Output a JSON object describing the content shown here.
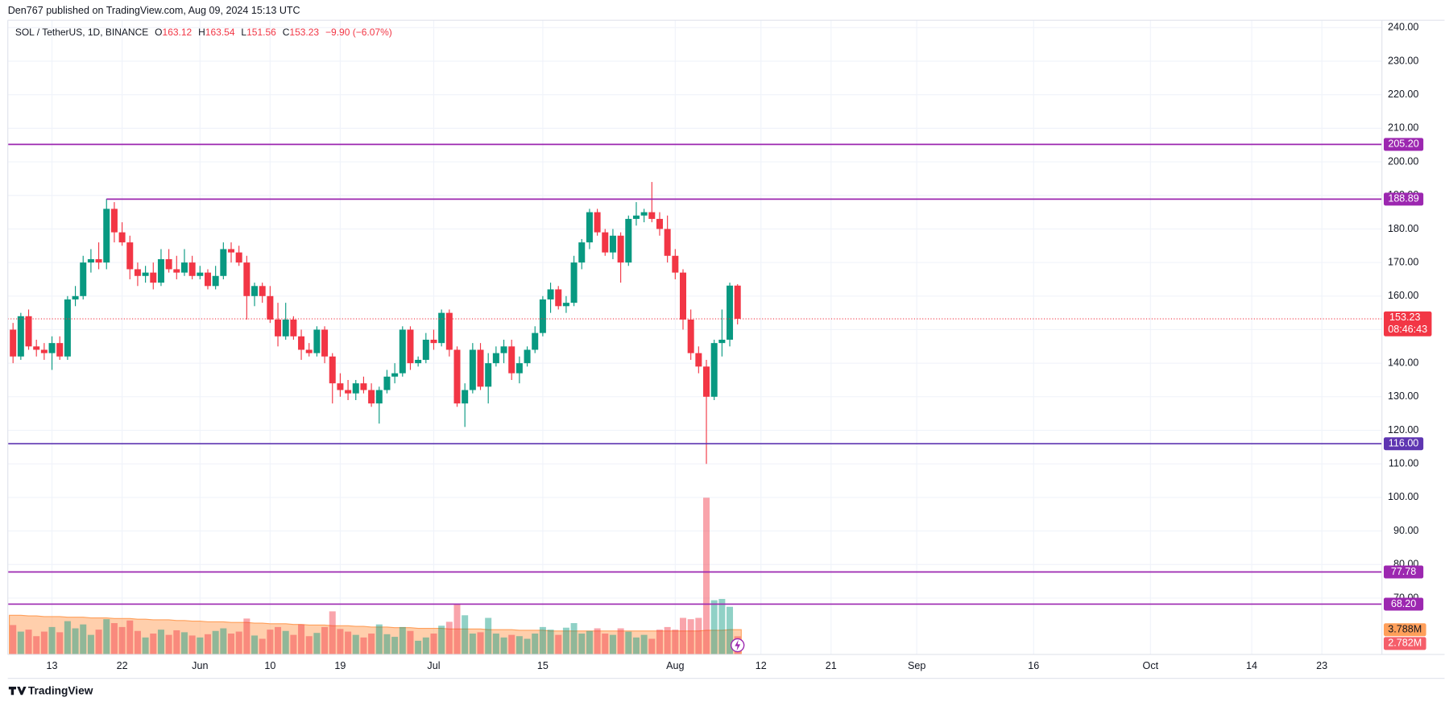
{
  "header": {
    "publisher": "Den767 published on TradingView.com, Aug 09, 2024 15:13 UTC"
  },
  "legend": {
    "symbol": "SOL / TetherUS, 1D, BINANCE",
    "o": "O",
    "h": "H",
    "l": "L",
    "c": "C",
    "change": "−9.90 (−6.07%)"
  },
  "countdown": "08:46:43",
  "footer": {
    "brand": "TradingView"
  },
  "chart_data": {
    "type": "candlestick",
    "up_color": "#089981",
    "down_color": "#f23645",
    "x": [
      "2024-05-08",
      "2024-05-09",
      "2024-05-10",
      "2024-05-11",
      "2024-05-12",
      "2024-05-13",
      "2024-05-14",
      "2024-05-15",
      "2024-05-16",
      "2024-05-17",
      "2024-05-18",
      "2024-05-19",
      "2024-05-20",
      "2024-05-21",
      "2024-05-22",
      "2024-05-23",
      "2024-05-24",
      "2024-05-25",
      "2024-05-26",
      "2024-05-27",
      "2024-05-28",
      "2024-05-29",
      "2024-05-30",
      "2024-05-31",
      "2024-06-01",
      "2024-06-02",
      "2024-06-03",
      "2024-06-04",
      "2024-06-05",
      "2024-06-06",
      "2024-06-07",
      "2024-06-08",
      "2024-06-09",
      "2024-06-10",
      "2024-06-11",
      "2024-06-12",
      "2024-06-13",
      "2024-06-14",
      "2024-06-15",
      "2024-06-16",
      "2024-06-17",
      "2024-06-18",
      "2024-06-19",
      "2024-06-20",
      "2024-06-21",
      "2024-06-22",
      "2024-06-23",
      "2024-06-24",
      "2024-06-25",
      "2024-06-26",
      "2024-06-27",
      "2024-06-28",
      "2024-06-29",
      "2024-06-30",
      "2024-07-01",
      "2024-07-02",
      "2024-07-03",
      "2024-07-04",
      "2024-07-05",
      "2024-07-06",
      "2024-07-07",
      "2024-07-08",
      "2024-07-09",
      "2024-07-10",
      "2024-07-11",
      "2024-07-12",
      "2024-07-13",
      "2024-07-14",
      "2024-07-15",
      "2024-07-16",
      "2024-07-17",
      "2024-07-18",
      "2024-07-19",
      "2024-07-20",
      "2024-07-21",
      "2024-07-22",
      "2024-07-23",
      "2024-07-24",
      "2024-07-25",
      "2024-07-26",
      "2024-07-27",
      "2024-07-28",
      "2024-07-29",
      "2024-07-30",
      "2024-07-31",
      "2024-08-01",
      "2024-08-02",
      "2024-08-03",
      "2024-08-04",
      "2024-08-05",
      "2024-08-06",
      "2024-08-07",
      "2024-08-08",
      "2024-08-09"
    ],
    "open": [
      150,
      142,
      154,
      145,
      144,
      143,
      146,
      142,
      159,
      160,
      170,
      171,
      170,
      186,
      179,
      176,
      168,
      166,
      167,
      164,
      171,
      168,
      167,
      170,
      166,
      167,
      163,
      166,
      174,
      173,
      170,
      160,
      163,
      160,
      153,
      148,
      153,
      148,
      144,
      143,
      150,
      142,
      134,
      132,
      131,
      134,
      132,
      128,
      132,
      136,
      137,
      150,
      140,
      141,
      147,
      146,
      155,
      144,
      128,
      132,
      144,
      133,
      140,
      143,
      145,
      137,
      140,
      144,
      149,
      159,
      162,
      157,
      158,
      170,
      176,
      185,
      179,
      173,
      178,
      170,
      183,
      184,
      185,
      183,
      180,
      172,
      167,
      153,
      143,
      139,
      130,
      146,
      147,
      163.12
    ],
    "high": [
      152,
      155,
      156,
      147,
      146,
      148,
      148,
      160,
      163,
      172,
      174,
      176,
      189,
      188,
      182,
      178,
      170,
      169,
      170,
      174,
      174,
      172,
      174,
      172,
      169,
      168,
      169,
      176,
      176,
      175,
      172,
      164,
      164,
      163,
      158,
      158,
      154,
      150,
      146,
      151,
      151,
      143,
      137,
      135,
      135,
      136,
      134,
      133,
      138,
      140,
      151,
      151,
      142,
      149,
      150,
      156,
      156,
      145,
      134,
      146,
      146,
      143,
      145,
      147,
      147,
      142,
      145,
      151,
      160,
      164,
      163,
      160,
      172,
      177,
      186,
      186,
      180,
      180,
      179,
      184,
      188,
      186,
      194,
      185,
      184,
      174,
      168,
      156,
      145,
      141,
      147,
      156,
      164,
      163.54
    ],
    "low": [
      140,
      141,
      144,
      142,
      141,
      138,
      141,
      141,
      157,
      159,
      167,
      168,
      168,
      176,
      175,
      165,
      163,
      164,
      162,
      163,
      167,
      165,
      166,
      165,
      165,
      162,
      162,
      165,
      170,
      169,
      153,
      157,
      158,
      152,
      145,
      147,
      147,
      141,
      142,
      142,
      140,
      128,
      130,
      129,
      129,
      131,
      127,
      122,
      131,
      134,
      136,
      138,
      139,
      140,
      144,
      145,
      142,
      127,
      121,
      131,
      132,
      128,
      139,
      140,
      135,
      134,
      139,
      143,
      148,
      155,
      156,
      155,
      157,
      168,
      174,
      178,
      172,
      171,
      164,
      169,
      181,
      182,
      182,
      178,
      170,
      165,
      150,
      141,
      137,
      110,
      129,
      142,
      145,
      151.56
    ],
    "close": [
      142,
      154,
      145,
      144,
      143,
      146,
      142,
      159,
      160,
      170,
      171,
      170,
      186,
      179,
      176,
      168,
      166,
      167,
      164,
      171,
      168,
      167,
      170,
      166,
      167,
      163,
      166,
      174,
      173,
      170,
      160,
      163,
      160,
      153,
      148,
      153,
      148,
      144,
      143,
      150,
      142,
      134,
      132,
      131,
      134,
      132,
      128,
      132,
      136,
      137,
      150,
      140,
      141,
      147,
      146,
      155,
      144,
      128,
      132,
      144,
      133,
      140,
      143,
      145,
      137,
      140,
      144,
      149,
      159,
      162,
      157,
      158,
      170,
      176,
      185,
      179,
      173,
      178,
      170,
      183,
      184,
      185,
      183,
      180,
      172,
      167,
      153,
      143,
      139,
      130,
      146,
      147,
      163.12,
      153.23
    ],
    "xlim": [
      "2024-05-07",
      "2024-10-30"
    ],
    "ylim": [
      53.2,
      242.2
    ],
    "xticks": [
      {
        "value": "2024-05-13",
        "label": "13"
      },
      {
        "value": "2024-05-22",
        "label": "22"
      },
      {
        "value": "2024-06-01",
        "label": "Jun"
      },
      {
        "value": "2024-06-10",
        "label": "10"
      },
      {
        "value": "2024-06-19",
        "label": "19"
      },
      {
        "value": "2024-07-01",
        "label": "Jul"
      },
      {
        "value": "2024-07-15",
        "label": "15"
      },
      {
        "value": "2024-08-01",
        "label": "Aug"
      },
      {
        "value": "2024-08-12",
        "label": "12"
      },
      {
        "value": "2024-08-21",
        "label": "21"
      },
      {
        "value": "2024-09-01",
        "label": "Sep"
      },
      {
        "value": "2024-09-16",
        "label": "16"
      },
      {
        "value": "2024-10-01",
        "label": "Oct"
      },
      {
        "value": "2024-10-14",
        "label": "14"
      },
      {
        "value": "2024-10-23",
        "label": "23"
      }
    ],
    "yticks": [
      {
        "value": 240,
        "label": "240.00"
      },
      {
        "value": 230,
        "label": "230.00"
      },
      {
        "value": 220,
        "label": "220.00"
      },
      {
        "value": 210,
        "label": "210.00"
      },
      {
        "value": 200,
        "label": "200.00"
      },
      {
        "value": 190,
        "label": "190.00"
      },
      {
        "value": 180,
        "label": "180.00"
      },
      {
        "value": 170,
        "label": "170.00"
      },
      {
        "value": 160,
        "label": "160.00"
      },
      {
        "value": 150,
        "label": "150.00"
      },
      {
        "value": 140,
        "label": "140.00"
      },
      {
        "value": 130,
        "label": "130.00"
      },
      {
        "value": 120,
        "label": "120.00"
      },
      {
        "value": 110,
        "label": "110.00"
      },
      {
        "value": 100,
        "label": "100.00"
      },
      {
        "value": 90,
        "label": "90.00"
      },
      {
        "value": 80,
        "label": "80.00"
      },
      {
        "value": 70,
        "label": "70.00"
      }
    ],
    "grid": true,
    "levels": [
      {
        "value": 205.2,
        "label": "205.20",
        "color": "#9c27b0"
      },
      {
        "value": 188.89,
        "label": "188.89",
        "color": "#9c27b0",
        "from": "2024-05-20"
      },
      {
        "value": 116,
        "label": "116.00",
        "color": "#5e35b1"
      },
      {
        "value": 77.78,
        "label": "77.78",
        "color": "#9c27b0"
      },
      {
        "value": 68.2,
        "label": "68.20",
        "color": "#9c27b0"
      }
    ],
    "volume": {
      "ylim": [
        0,
        24.1
      ],
      "ma_color": "#ff9f5a",
      "values": [
        4.5,
        3.5,
        3.8,
        2.8,
        3.5,
        4.2,
        3.4,
        5.1,
        4.0,
        4.6,
        3.0,
        3.8,
        5.4,
        4.8,
        4.2,
        5.2,
        3.6,
        2.6,
        3.2,
        3.8,
        3.0,
        3.7,
        3.4,
        2.9,
        2.6,
        3.1,
        3.6,
        4.0,
        3.2,
        3.5,
        5.5,
        2.9,
        2.4,
        3.8,
        4.2,
        3.6,
        3.0,
        4.6,
        2.8,
        3.3,
        4.2,
        6.6,
        3.9,
        3.5,
        3.0,
        2.6,
        3.2,
        4.6,
        3.1,
        2.7,
        4.2,
        3.6,
        2.1,
        2.6,
        3.2,
        4.4,
        5.0,
        7.7,
        6.0,
        3.2,
        3.4,
        5.6,
        3.2,
        2.6,
        3.0,
        2.8,
        2.4,
        3.2,
        4.2,
        3.8,
        3.0,
        4.1,
        4.8,
        3.2,
        3.6,
        4.0,
        3.2,
        3.0,
        4.0,
        3.5,
        2.6,
        3.0,
        2.4,
        3.8,
        4.2,
        3.8,
        5.6,
        5.4,
        5.6,
        24.0,
        8.3,
        8.5,
        7.3,
        2.782
      ],
      "ma": [
        6.0,
        6.0,
        5.9,
        5.9,
        5.8,
        5.8,
        5.8,
        5.7,
        5.7,
        5.7,
        5.6,
        5.6,
        5.6,
        5.5,
        5.5,
        5.5,
        5.4,
        5.4,
        5.3,
        5.3,
        5.3,
        5.2,
        5.2,
        5.1,
        5.1,
        5.0,
        5.0,
        5.0,
        4.9,
        4.9,
        4.9,
        4.8,
        4.8,
        4.7,
        4.7,
        4.7,
        4.6,
        4.6,
        4.5,
        4.5,
        4.5,
        4.4,
        4.4,
        4.4,
        4.3,
        4.3,
        4.2,
        4.2,
        4.2,
        4.1,
        4.1,
        4.1,
        4.0,
        4.0,
        4.0,
        4.0,
        3.9,
        3.9,
        3.9,
        3.9,
        3.9,
        3.8,
        3.8,
        3.8,
        3.8,
        3.7,
        3.7,
        3.7,
        3.7,
        3.6,
        3.6,
        3.6,
        3.6,
        3.6,
        3.6,
        3.6,
        3.6,
        3.6,
        3.6,
        3.6,
        3.6,
        3.6,
        3.6,
        3.6,
        3.6,
        3.6,
        3.6,
        3.6,
        3.6,
        3.7,
        3.7,
        3.7,
        3.8,
        3.788
      ],
      "last_ma_label": "3.788M",
      "last_volume_label": "2.782M"
    }
  }
}
